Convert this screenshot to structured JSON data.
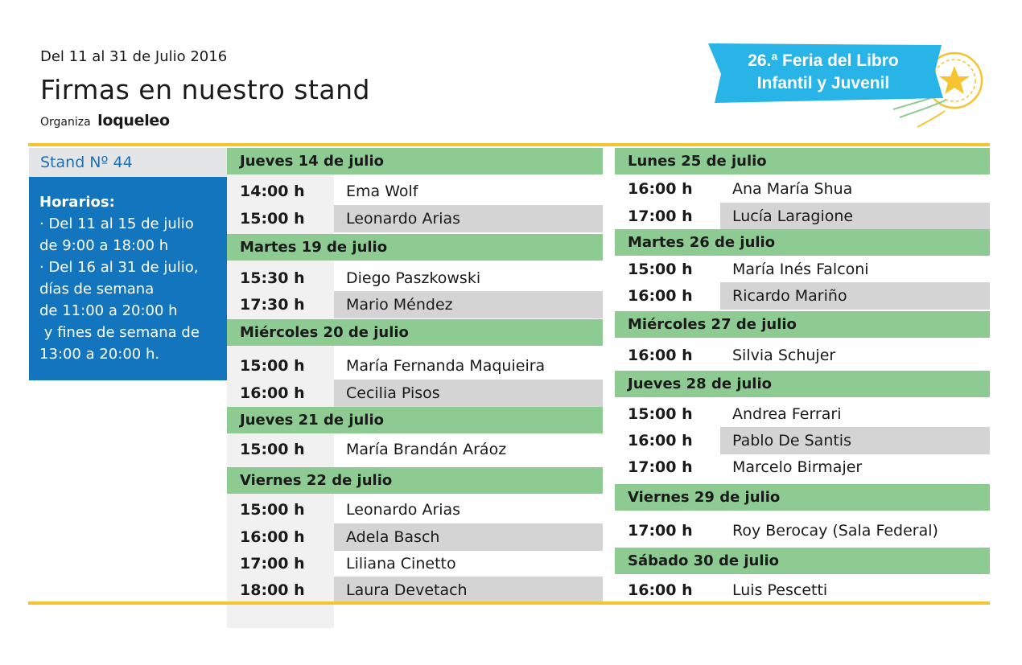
{
  "header": {
    "date_range": "Del 11 al 31 de Julio 2016",
    "title": "Firmas en nuestro stand",
    "organizer_prefix": "Organiza",
    "organizer_brand": "loqueleo"
  },
  "fair_badge": {
    "line1": "26.ª Feria del Libro",
    "line2": "Infantil y Juvenil"
  },
  "colors": {
    "accent_yellow": "#f7c431",
    "day_green": "#8dcb93",
    "hours_blue": "#1375be",
    "badge_blue": "#29b4e8"
  },
  "stand": {
    "label": "Stand  Nº 44"
  },
  "hours": {
    "heading": "Horarios:",
    "lines": [
      "· Del 11 al 15 de julio",
      "de 9:00 a 18:00 h",
      "· Del 16 al 31 de julio,",
      "días de semana",
      "de 11:00 a 20:00 h",
      " y fines de semana de",
      "13:00 a 20:00 h."
    ]
  },
  "columns": [
    {
      "days": [
        {
          "title": "Jueves 14 de julio",
          "slots": [
            {
              "time": "14:00 h",
              "name": "Ema Wolf"
            },
            {
              "time": "15:00 h",
              "name": "Leonardo Arias"
            }
          ]
        },
        {
          "title": "Martes 19 de julio",
          "slots": [
            {
              "time": "15:30 h",
              "name": "Diego Paszkowski"
            },
            {
              "time": "17:30 h",
              "name": "Mario Méndez"
            }
          ]
        },
        {
          "title": "Miércoles 20 de julio",
          "slots": [
            {
              "time": "15:00 h",
              "name": "María Fernanda Maquieira"
            },
            {
              "time": "16:00 h",
              "name": "Cecilia Pisos"
            }
          ]
        },
        {
          "title": "Jueves 21 de julio",
          "slots": [
            {
              "time": "15:00 h",
              "name": "María Brandán Aráoz"
            }
          ]
        },
        {
          "title": "Viernes 22 de julio",
          "slots": [
            {
              "time": "15:00 h",
              "name": "Leonardo Arias"
            },
            {
              "time": "16:00 h",
              "name": "Adela Basch"
            },
            {
              "time": "17:00 h",
              "name": "Liliana Cinetto"
            },
            {
              "time": "18:00 h",
              "name": "Laura Devetach"
            }
          ]
        }
      ]
    },
    {
      "days": [
        {
          "title": "Lunes 25 de julio",
          "slots": [
            {
              "time": "16:00 h",
              "name": "Ana María Shua"
            },
            {
              "time": "17:00 h",
              "name": "Lucía Laragione"
            }
          ]
        },
        {
          "title": "Martes 26 de julio",
          "slots": [
            {
              "time": "15:00 h",
              "name": "María Inés Falconi"
            },
            {
              "time": "16:00 h",
              "name": "Ricardo Mariño"
            }
          ]
        },
        {
          "title": "Miércoles 27 de julio",
          "slots": [
            {
              "time": "16:00 h",
              "name": "Silvia Schujer"
            }
          ]
        },
        {
          "title": "Jueves 28 de julio",
          "slots": [
            {
              "time": "15:00 h",
              "name": "Andrea Ferrari"
            },
            {
              "time": "16:00 h",
              "name": "Pablo De Santis"
            },
            {
              "time": "17:00 h",
              "name": "Marcelo Birmajer"
            }
          ]
        },
        {
          "title": "Viernes 29 de julio",
          "slots": [
            {
              "time": "17:00 h",
              "name": "Roy Berocay (Sala Federal)"
            }
          ]
        },
        {
          "title": "Sábado 30 de julio",
          "slots": [
            {
              "time": "16:00 h",
              "name": "Luis Pescetti"
            }
          ]
        }
      ]
    }
  ]
}
